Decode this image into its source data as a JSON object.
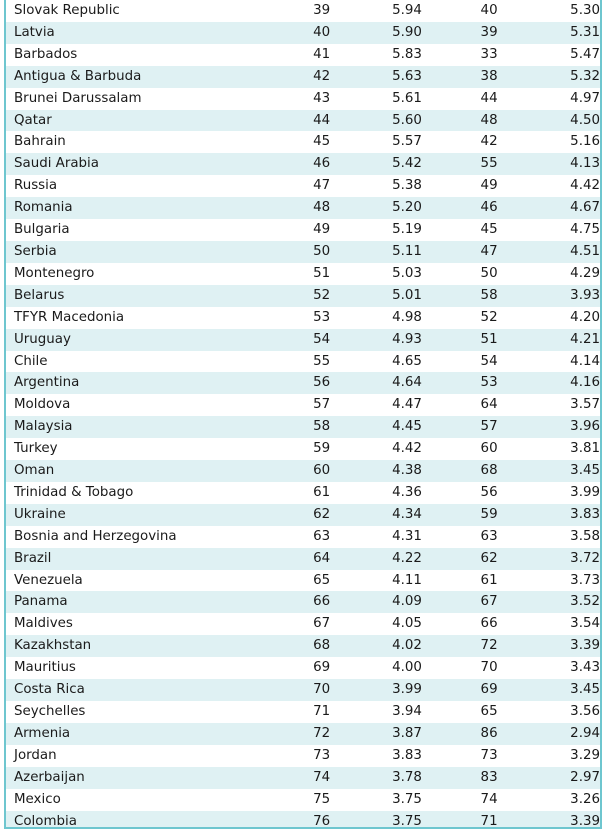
{
  "rows": [
    {
      "country": "Slovak Republic",
      "rank1": "39",
      "score1": "5.94",
      "rank2": "40",
      "score2": "5.30"
    },
    {
      "country": "Latvia",
      "rank1": "40",
      "score1": "5.90",
      "rank2": "39",
      "score2": "5.31"
    },
    {
      "country": "Barbados",
      "rank1": "41",
      "score1": "5.83",
      "rank2": "33",
      "score2": "5.47"
    },
    {
      "country": "Antigua & Barbuda",
      "rank1": "42",
      "score1": "5.63",
      "rank2": "38",
      "score2": "5.32"
    },
    {
      "country": "Brunei Darussalam",
      "rank1": "43",
      "score1": "5.61",
      "rank2": "44",
      "score2": "4.97"
    },
    {
      "country": "Qatar",
      "rank1": "44",
      "score1": "5.60",
      "rank2": "48",
      "score2": "4.50"
    },
    {
      "country": "Bahrain",
      "rank1": "45",
      "score1": "5.57",
      "rank2": "42",
      "score2": "5.16"
    },
    {
      "country": "Saudi Arabia",
      "rank1": "46",
      "score1": "5.42",
      "rank2": "55",
      "score2": "4.13"
    },
    {
      "country": "Russia",
      "rank1": "47",
      "score1": "5.38",
      "rank2": "49",
      "score2": "4.42"
    },
    {
      "country": "Romania",
      "rank1": "48",
      "score1": "5.20",
      "rank2": "46",
      "score2": "4.67"
    },
    {
      "country": "Bulgaria",
      "rank1": "49",
      "score1": "5.19",
      "rank2": "45",
      "score2": "4.75"
    },
    {
      "country": "Serbia",
      "rank1": "50",
      "score1": "5.11",
      "rank2": "47",
      "score2": "4.51"
    },
    {
      "country": "Montenegro",
      "rank1": "51",
      "score1": "5.03",
      "rank2": "50",
      "score2": "4.29"
    },
    {
      "country": "Belarus",
      "rank1": "52",
      "score1": "5.01",
      "rank2": "58",
      "score2": "3.93"
    },
    {
      "country": "TFYR Macedonia",
      "rank1": "53",
      "score1": "4.98",
      "rank2": "52",
      "score2": "4.20"
    },
    {
      "country": "Uruguay",
      "rank1": "54",
      "score1": "4.93",
      "rank2": "51",
      "score2": "4.21"
    },
    {
      "country": "Chile",
      "rank1": "55",
      "score1": "4.65",
      "rank2": "54",
      "score2": "4.14"
    },
    {
      "country": "Argentina",
      "rank1": "56",
      "score1": "4.64",
      "rank2": "53",
      "score2": "4.16"
    },
    {
      "country": "Moldova",
      "rank1": "57",
      "score1": "4.47",
      "rank2": "64",
      "score2": "3.57"
    },
    {
      "country": "Malaysia",
      "rank1": "58",
      "score1": "4.45",
      "rank2": "57",
      "score2": "3.96"
    },
    {
      "country": "Turkey",
      "rank1": "59",
      "score1": "4.42",
      "rank2": "60",
      "score2": "3.81"
    },
    {
      "country": "Oman",
      "rank1": "60",
      "score1": "4.38",
      "rank2": "68",
      "score2": "3.45"
    },
    {
      "country": "Trinidad & Tobago",
      "rank1": "61",
      "score1": "4.36",
      "rank2": "56",
      "score2": "3.99"
    },
    {
      "country": "Ukraine",
      "rank1": "62",
      "score1": "4.34",
      "rank2": "59",
      "score2": "3.83"
    },
    {
      "country": "Bosnia and Herzegovina",
      "rank1": "63",
      "score1": "4.31",
      "rank2": "63",
      "score2": "3.58"
    },
    {
      "country": "Brazil",
      "rank1": "64",
      "score1": "4.22",
      "rank2": "62",
      "score2": "3.72"
    },
    {
      "country": "Venezuela",
      "rank1": "65",
      "score1": "4.11",
      "rank2": "61",
      "score2": "3.73"
    },
    {
      "country": "Panama",
      "rank1": "66",
      "score1": "4.09",
      "rank2": "67",
      "score2": "3.52"
    },
    {
      "country": "Maldives",
      "rank1": "67",
      "score1": "4.05",
      "rank2": "66",
      "score2": "3.54"
    },
    {
      "country": "Kazakhstan",
      "rank1": "68",
      "score1": "4.02",
      "rank2": "72",
      "score2": "3.39"
    },
    {
      "country": "Mauritius",
      "rank1": "69",
      "score1": "4.00",
      "rank2": "70",
      "score2": "3.43"
    },
    {
      "country": "Costa Rica",
      "rank1": "70",
      "score1": "3.99",
      "rank2": "69",
      "score2": "3.45"
    },
    {
      "country": "Seychelles",
      "rank1": "71",
      "score1": "3.94",
      "rank2": "65",
      "score2": "3.56"
    },
    {
      "country": "Armenia",
      "rank1": "72",
      "score1": "3.87",
      "rank2": "86",
      "score2": "2.94"
    },
    {
      "country": "Jordan",
      "rank1": "73",
      "score1": "3.83",
      "rank2": "73",
      "score2": "3.29"
    },
    {
      "country": "Azerbaijan",
      "rank1": "74",
      "score1": "3.78",
      "rank2": "83",
      "score2": "2.97"
    },
    {
      "country": "Mexico",
      "rank1": "75",
      "score1": "3.75",
      "rank2": "74",
      "score2": "3.26"
    },
    {
      "country": "Colombia",
      "rank1": "76",
      "score1": "3.75",
      "rank2": "71",
      "score2": "3.39"
    }
  ],
  "colors": {
    "border": "#6ec6cf",
    "stripe": "#dff1f3",
    "text": "#1a1a1a"
  }
}
